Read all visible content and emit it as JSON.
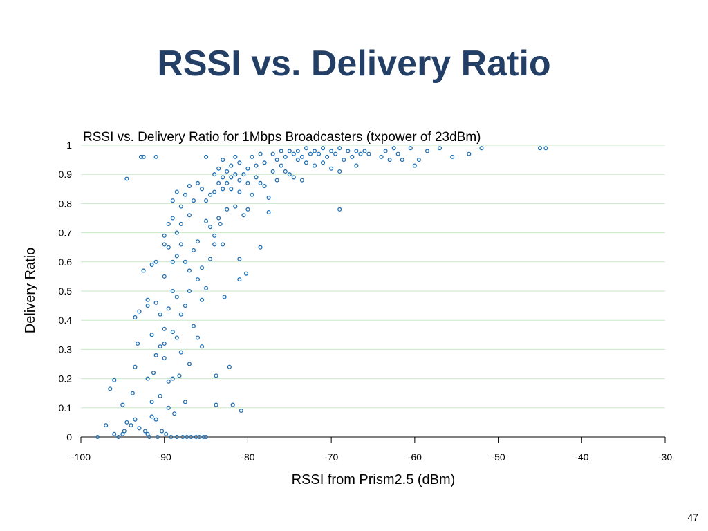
{
  "slide": {
    "title": "RSSI vs. Delivery Ratio",
    "page_number": "47"
  },
  "colors": {
    "title": "#243f66",
    "marker": "#1f6fb5",
    "grid": "#c8eac8",
    "axis": "#000000"
  },
  "chart_data": {
    "type": "scatter",
    "title": "RSSI vs. Delivery Ratio for 1Mbps Broadcasters (txpower of 23dBm)",
    "xlabel": "RSSI from Prism2.5 (dBm)",
    "ylabel": "Delivery Ratio",
    "xlim": [
      -100,
      -30
    ],
    "ylim": [
      0,
      1
    ],
    "x_ticks": [
      "-100",
      "-90",
      "-80",
      "-70",
      "-60",
      "-50",
      "-40",
      "-30"
    ],
    "x_tick_values": [
      -100,
      -90,
      -80,
      -70,
      -60,
      -50,
      -40,
      -30
    ],
    "y_ticks": [
      "0",
      "0.1",
      "0.2",
      "0.3",
      "0.4",
      "0.5",
      "0.6",
      "0.7",
      "0.8",
      "0.9",
      "1"
    ],
    "y_tick_values": [
      0,
      0.1,
      0.2,
      0.3,
      0.4,
      0.5,
      0.6,
      0.7,
      0.8,
      0.9,
      1
    ],
    "grid": "horizontal",
    "marker": "open-circle",
    "points": [
      [
        -98,
        0.0
      ],
      [
        -97,
        0.04
      ],
      [
        -96.5,
        0.165
      ],
      [
        -96,
        0.195
      ],
      [
        -96,
        0.01
      ],
      [
        -95.5,
        0.0
      ],
      [
        -95,
        0.01
      ],
      [
        -95,
        0.11
      ],
      [
        -94.8,
        0.02
      ],
      [
        -94.5,
        0.05
      ],
      [
        -94.5,
        0.885
      ],
      [
        -94,
        0.04
      ],
      [
        -93.8,
        0.15
      ],
      [
        -93.5,
        0.41
      ],
      [
        -93.5,
        0.06
      ],
      [
        -93.5,
        0.24
      ],
      [
        -93.2,
        0.32
      ],
      [
        -93,
        0.43
      ],
      [
        -93,
        0.03
      ],
      [
        -92.8,
        0.96
      ],
      [
        -92.5,
        0.57
      ],
      [
        -92.5,
        0.96
      ],
      [
        -92.3,
        0.02
      ],
      [
        -92,
        0.47
      ],
      [
        -92,
        0.45
      ],
      [
        -92,
        0.2
      ],
      [
        -92,
        0.01
      ],
      [
        -91.8,
        0.0
      ],
      [
        -91.5,
        0.59
      ],
      [
        -91.5,
        0.35
      ],
      [
        -91.5,
        0.12
      ],
      [
        -91.5,
        0.07
      ],
      [
        -91.3,
        0.22
      ],
      [
        -91,
        0.96
      ],
      [
        -91,
        0.6
      ],
      [
        -91,
        0.46
      ],
      [
        -91,
        0.28
      ],
      [
        -91,
        0.06
      ],
      [
        -90.8,
        0.0
      ],
      [
        -90.5,
        0.42
      ],
      [
        -90.5,
        0.31
      ],
      [
        -90.5,
        0.14
      ],
      [
        -90.3,
        0.02
      ],
      [
        -90,
        0.69
      ],
      [
        -90,
        0.66
      ],
      [
        -90,
        0.55
      ],
      [
        -90,
        0.37
      ],
      [
        -90,
        0.32
      ],
      [
        -90,
        0.27
      ],
      [
        -89.8,
        0.01
      ],
      [
        -89.5,
        0.73
      ],
      [
        -89.5,
        0.65
      ],
      [
        -89.5,
        0.44
      ],
      [
        -89.5,
        0.19
      ],
      [
        -89.5,
        0.1
      ],
      [
        -89.2,
        0.0
      ],
      [
        -89,
        0.81
      ],
      [
        -89,
        0.75
      ],
      [
        -89,
        0.6
      ],
      [
        -89,
        0.5
      ],
      [
        -89,
        0.36
      ],
      [
        -89,
        0.2
      ],
      [
        -88.8,
        0.08
      ],
      [
        -88.5,
        0.84
      ],
      [
        -88.5,
        0.7
      ],
      [
        -88.5,
        0.62
      ],
      [
        -88.5,
        0.48
      ],
      [
        -88.5,
        0.34
      ],
      [
        -88.5,
        0.0
      ],
      [
        -88.2,
        0.21
      ],
      [
        -88,
        0.79
      ],
      [
        -88,
        0.73
      ],
      [
        -88,
        0.66
      ],
      [
        -88,
        0.42
      ],
      [
        -88,
        0.29
      ],
      [
        -87.8,
        0.0
      ],
      [
        -87.5,
        0.83
      ],
      [
        -87.5,
        0.6
      ],
      [
        -87.5,
        0.45
      ],
      [
        -87.5,
        0.12
      ],
      [
        -87.3,
        0.0
      ],
      [
        -87,
        0.86
      ],
      [
        -87,
        0.76
      ],
      [
        -87,
        0.57
      ],
      [
        -87,
        0.5
      ],
      [
        -87,
        0.25
      ],
      [
        -86.8,
        0.0
      ],
      [
        -86.5,
        0.81
      ],
      [
        -86.5,
        0.64
      ],
      [
        -86.5,
        0.38
      ],
      [
        -86.2,
        0.0
      ],
      [
        -86,
        0.87
      ],
      [
        -86,
        0.67
      ],
      [
        -86,
        0.54
      ],
      [
        -86,
        0.34
      ],
      [
        -85.8,
        0.0
      ],
      [
        -85.5,
        0.85
      ],
      [
        -85.5,
        0.58
      ],
      [
        -85.5,
        0.47
      ],
      [
        -85.5,
        0.31
      ],
      [
        -85.3,
        0.0
      ],
      [
        -85,
        0.96
      ],
      [
        -85,
        0.81
      ],
      [
        -85,
        0.74
      ],
      [
        -85,
        0.51
      ],
      [
        -85,
        0.0
      ],
      [
        -84.5,
        0.83
      ],
      [
        -84.5,
        0.72
      ],
      [
        -84.5,
        0.61
      ],
      [
        -84,
        0.9
      ],
      [
        -84,
        0.84
      ],
      [
        -84,
        0.69
      ],
      [
        -84,
        0.66
      ],
      [
        -83.8,
        0.21
      ],
      [
        -83.8,
        0.11
      ],
      [
        -83.5,
        0.92
      ],
      [
        -83.5,
        0.87
      ],
      [
        -83.5,
        0.75
      ],
      [
        -83.3,
        0.73
      ],
      [
        -83,
        0.95
      ],
      [
        -83,
        0.89
      ],
      [
        -83,
        0.85
      ],
      [
        -83,
        0.66
      ],
      [
        -82.8,
        0.48
      ],
      [
        -82.5,
        0.91
      ],
      [
        -82.5,
        0.87
      ],
      [
        -82.5,
        0.78
      ],
      [
        -82.2,
        0.24
      ],
      [
        -82,
        0.93
      ],
      [
        -82,
        0.89
      ],
      [
        -82,
        0.85
      ],
      [
        -81.8,
        0.11
      ],
      [
        -81.5,
        0.96
      ],
      [
        -81.5,
        0.9
      ],
      [
        -81.5,
        0.79
      ],
      [
        -81,
        0.94
      ],
      [
        -81,
        0.88
      ],
      [
        -81,
        0.84
      ],
      [
        -81,
        0.61
      ],
      [
        -81,
        0.54
      ],
      [
        -80.8,
        0.09
      ],
      [
        -80.5,
        0.9
      ],
      [
        -80.5,
        0.76
      ],
      [
        -80.2,
        0.56
      ],
      [
        -80,
        0.92
      ],
      [
        -80,
        0.87
      ],
      [
        -80,
        0.78
      ],
      [
        -79.5,
        0.96
      ],
      [
        -79.5,
        0.83
      ],
      [
        -79,
        0.93
      ],
      [
        -79,
        0.89
      ],
      [
        -78.5,
        0.97
      ],
      [
        -78.5,
        0.87
      ],
      [
        -78.5,
        0.65
      ],
      [
        -78,
        0.94
      ],
      [
        -78,
        0.86
      ],
      [
        -77.5,
        0.82
      ],
      [
        -77.5,
        0.77
      ],
      [
        -77,
        0.97
      ],
      [
        -77,
        0.91
      ],
      [
        -76.5,
        0.95
      ],
      [
        -76.5,
        0.88
      ],
      [
        -76,
        0.98
      ],
      [
        -76,
        0.93
      ],
      [
        -75.5,
        0.96
      ],
      [
        -75.5,
        0.91
      ],
      [
        -75,
        0.98
      ],
      [
        -75,
        0.9
      ],
      [
        -74.5,
        0.97
      ],
      [
        -74.5,
        0.89
      ],
      [
        -74,
        0.98
      ],
      [
        -74,
        0.95
      ],
      [
        -73.5,
        0.96
      ],
      [
        -73.5,
        0.88
      ],
      [
        -73,
        0.99
      ],
      [
        -73,
        0.94
      ],
      [
        -72.5,
        0.97
      ],
      [
        -72,
        0.98
      ],
      [
        -72,
        0.93
      ],
      [
        -71.5,
        0.97
      ],
      [
        -71,
        0.99
      ],
      [
        -71,
        0.94
      ],
      [
        -70.5,
        0.96
      ],
      [
        -70,
        0.98
      ],
      [
        -70,
        0.92
      ],
      [
        -69.5,
        0.97
      ],
      [
        -69,
        0.99
      ],
      [
        -69,
        0.91
      ],
      [
        -69,
        0.78
      ],
      [
        -68.5,
        0.95
      ],
      [
        -68,
        0.98
      ],
      [
        -67.5,
        0.96
      ],
      [
        -67,
        0.98
      ],
      [
        -67,
        0.93
      ],
      [
        -66.5,
        0.97
      ],
      [
        -66,
        0.98
      ],
      [
        -65.5,
        0.97
      ],
      [
        -64,
        0.96
      ],
      [
        -63.5,
        0.98
      ],
      [
        -63,
        0.95
      ],
      [
        -62.5,
        0.99
      ],
      [
        -62,
        0.97
      ],
      [
        -61.5,
        0.95
      ],
      [
        -60.5,
        0.99
      ],
      [
        -60,
        0.93
      ],
      [
        -59.5,
        0.95
      ],
      [
        -58.5,
        0.98
      ],
      [
        -57,
        0.99
      ],
      [
        -55.5,
        0.96
      ],
      [
        -53.5,
        0.97
      ],
      [
        -52,
        0.99
      ],
      [
        -45,
        0.99
      ],
      [
        -44.3,
        0.99
      ]
    ]
  }
}
